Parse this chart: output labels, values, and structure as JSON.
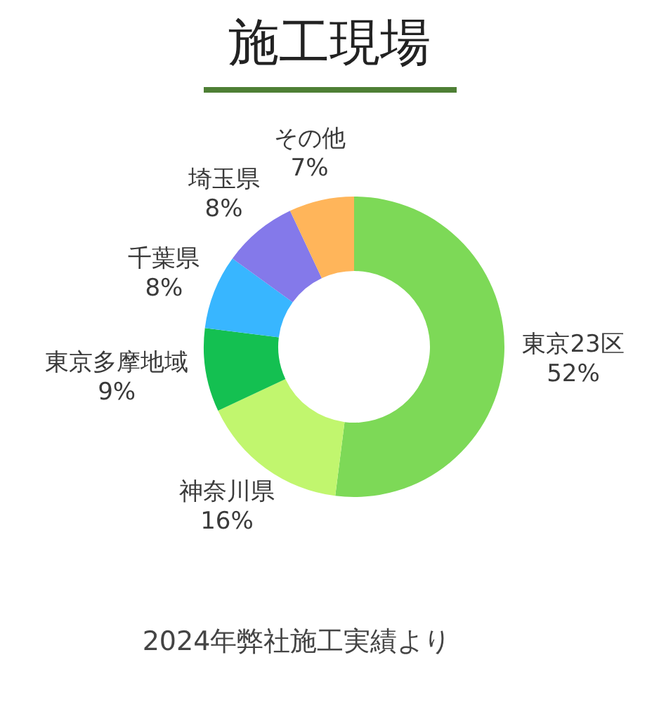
{
  "chart_data": {
    "type": "donut",
    "title": "施工現場",
    "categories": [
      "東京23区",
      "神奈川県",
      "東京多摩地域",
      "千葉県",
      "埼玉県",
      "その他"
    ],
    "values": [
      52,
      16,
      9,
      8,
      8,
      7
    ],
    "colors": [
      "#7dd957",
      "#c1f66e",
      "#14c051",
      "#38b6ff",
      "#8479ea",
      "#ffb55a"
    ],
    "value_labels": [
      "52%",
      "16%",
      "9%",
      "8%",
      "8%",
      "7%"
    ],
    "annotations": [
      "2024年弊社施工実績より"
    ]
  }
}
